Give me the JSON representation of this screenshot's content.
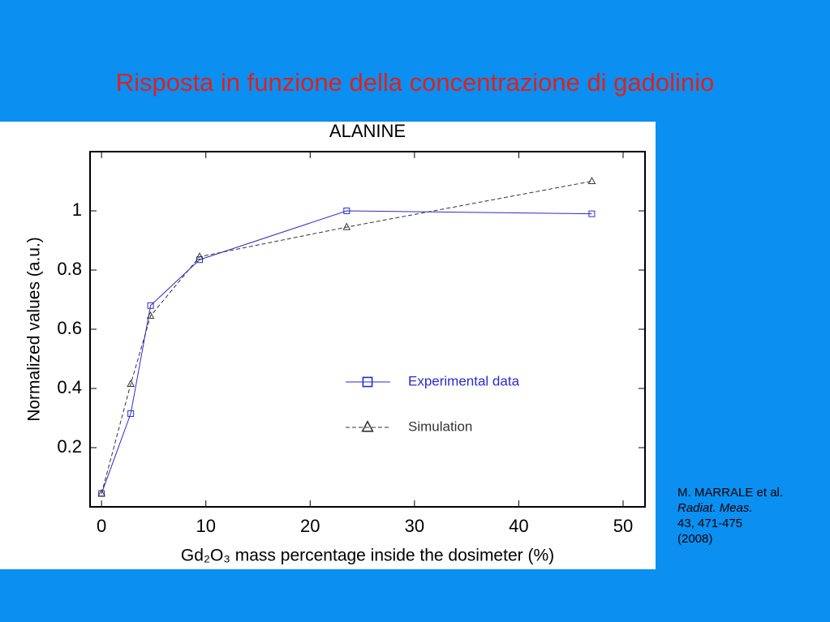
{
  "slide": {
    "title": "Risposta in funzione della concentrazione di gadolinio",
    "reference": [
      "M. MARRALE et al.",
      "Radiat. Meas.",
      "43, 471-475",
      "(2008)"
    ]
  },
  "chart_data": {
    "type": "line",
    "title": "ALANINE",
    "x_label": "Gd₂O₃ mass percentage inside the dosimeter (%)",
    "y_label": "Normalized values (a.u.)",
    "xlim": [
      -1.1,
      52.1
    ],
    "ylim": [
      0,
      1.2
    ],
    "xticks": [
      0,
      10,
      20,
      30,
      40,
      50
    ],
    "yticks": [
      0.2,
      0.4,
      0.6,
      0.8,
      1
    ],
    "series": [
      {
        "name": "Experimental data",
        "color": "#2b2bd0",
        "marker": "square",
        "dashed": false,
        "x": [
          0,
          2.8,
          4.7,
          9.4,
          23.5,
          47
        ],
        "values": [
          0.045,
          0.315,
          0.68,
          0.835,
          1.0,
          0.99
        ]
      },
      {
        "name": "Simulation",
        "color": "#333333",
        "marker": "triangle",
        "dashed": true,
        "x": [
          0,
          2.8,
          4.7,
          9.4,
          23.5,
          47
        ],
        "values": [
          0.045,
          0.415,
          0.645,
          0.845,
          0.945,
          1.1
        ]
      }
    ]
  }
}
